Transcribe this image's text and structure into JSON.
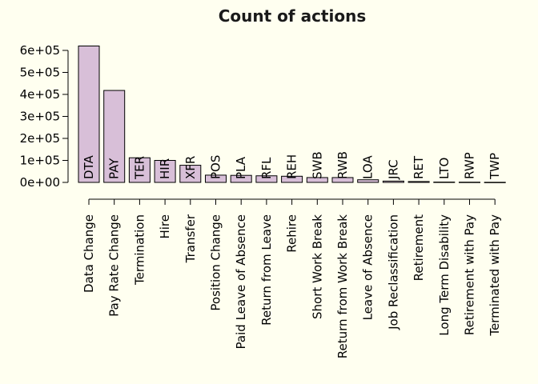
{
  "chart_data": {
    "type": "bar",
    "title": "Count of actions",
    "xlabel": "",
    "ylabel": "",
    "ylim": [
      0,
      600000
    ],
    "yticks": [
      {
        "value": 0,
        "label": "0e+00"
      },
      {
        "value": 100000,
        "label": "1e+05"
      },
      {
        "value": 200000,
        "label": "2e+05"
      },
      {
        "value": 300000,
        "label": "3e+05"
      },
      {
        "value": 400000,
        "label": "4e+05"
      },
      {
        "value": 500000,
        "label": "5e+05"
      },
      {
        "value": 600000,
        "label": "6e+05"
      }
    ],
    "codes": [
      "DTA",
      "PAY",
      "TER",
      "HIR",
      "XFR",
      "POS",
      "PLA",
      "RFL",
      "REH",
      "SWB",
      "RWB",
      "LOA",
      "JRC",
      "RET",
      "LTO",
      "RWP",
      "TWP"
    ],
    "categories": [
      "Data Change",
      "Pay Rate Change",
      "Termination",
      "Hire",
      "Transfer",
      "Position Change",
      "Paid Leave of Absence",
      "Return from Leave",
      "Rehire",
      "Short Work Break",
      "Return from Work Break",
      "Leave of Absence",
      "Job Reclassification",
      "Retirement",
      "Long Term Disability",
      "Retirement with Pay",
      "Terminated with Pay"
    ],
    "values": [
      620000,
      418000,
      112000,
      100000,
      78000,
      33000,
      32000,
      30000,
      28000,
      22000,
      22000,
      12000,
      6000,
      4000,
      1500,
      1000,
      500
    ],
    "bar_color": "#d8bfd8",
    "background": "#fffff0",
    "grid": false
  }
}
